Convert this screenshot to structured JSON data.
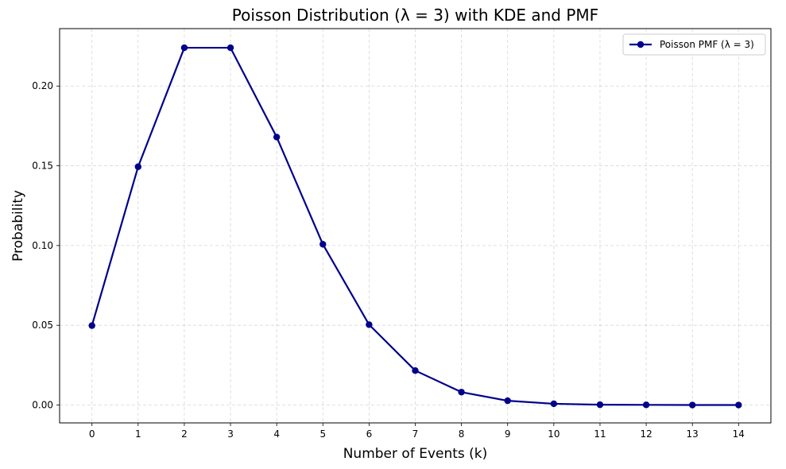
{
  "chart_data": {
    "type": "line",
    "title": "Poisson Distribution (λ = 3) with KDE and PMF",
    "xlabel": "Number of Events (k)",
    "ylabel": "Probability",
    "x": [
      0,
      1,
      2,
      3,
      4,
      5,
      6,
      7,
      8,
      9,
      10,
      11,
      12,
      13,
      14
    ],
    "x_tick_labels": [
      "0",
      "1",
      "2",
      "3",
      "4",
      "5",
      "6",
      "7",
      "8",
      "9",
      "10",
      "11",
      "12",
      "13",
      "14"
    ],
    "y_ticks": [
      0.0,
      0.05,
      0.1,
      0.15,
      0.2
    ],
    "y_tick_labels": [
      "0.00",
      "0.05",
      "0.10",
      "0.15",
      "0.20"
    ],
    "xlim": [
      -0.7,
      14.7
    ],
    "ylim": [
      -0.0112,
      0.236
    ],
    "grid": true,
    "legend_position": "top-right",
    "series": [
      {
        "name": "Poisson PMF (λ = 3)",
        "color": "#00008b",
        "marker": "circle",
        "values": [
          0.0498,
          0.1494,
          0.224,
          0.224,
          0.168,
          0.1008,
          0.0504,
          0.0216,
          0.0081,
          0.0027,
          0.0008,
          0.0002,
          0.0001,
          0.0,
          0.0
        ]
      }
    ]
  }
}
